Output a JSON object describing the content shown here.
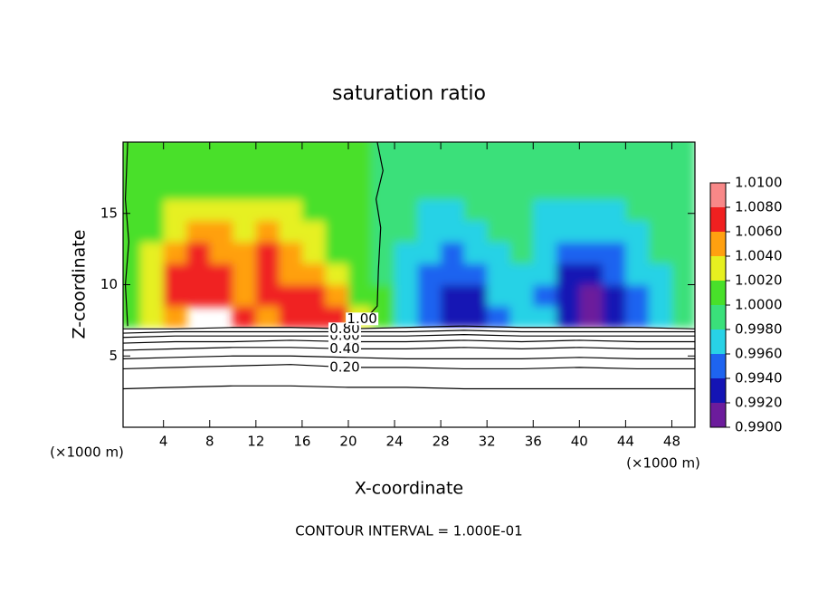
{
  "chart_data": {
    "type": "contour",
    "title": "saturation ratio",
    "x_label": "X-coordinate",
    "y_label": "Z-coordinate",
    "x_unit": "(×1000 m)",
    "y_unit": "(×1000 m)",
    "note": "CONTOUR INTERVAL = 1.000E-01",
    "xlim": [
      0.5,
      50
    ],
    "ylim": [
      0,
      20
    ],
    "xticks": [
      4,
      8,
      12,
      16,
      20,
      24,
      28,
      32,
      36,
      40,
      44,
      48
    ],
    "yticks": [
      5,
      10,
      15
    ],
    "colorbar": {
      "ticks": [
        {
          "value": 0.99,
          "label": "0.9900"
        },
        {
          "value": 0.992,
          "label": "0.9920"
        },
        {
          "value": 0.994,
          "label": "0.9940"
        },
        {
          "value": 0.996,
          "label": "0.9960"
        },
        {
          "value": 0.998,
          "label": "0.9980"
        },
        {
          "value": 1.0,
          "label": "1.0000"
        },
        {
          "value": 1.002,
          "label": "1.0020"
        },
        {
          "value": 1.004,
          "label": "1.0040"
        },
        {
          "value": 1.006,
          "label": "1.0060"
        },
        {
          "value": 1.008,
          "label": "1.0080"
        },
        {
          "value": 1.01,
          "label": "1.0100"
        }
      ],
      "colors": [
        "#6c1c9c",
        "#1414b4",
        "#1e64f0",
        "#28d2e6",
        "#3ae07a",
        "#48e02a",
        "#e6f020",
        "#ffa010",
        "#f02020",
        "#f88888"
      ]
    },
    "field": {
      "x": [
        1,
        3,
        5,
        7,
        9,
        11,
        13,
        15,
        17,
        19,
        21,
        23,
        25,
        27,
        29,
        31,
        33,
        35,
        37,
        39,
        41,
        43,
        45,
        47,
        49
      ],
      "z": [
        7.75,
        9.25,
        10.75,
        12.25,
        13.75,
        15.25,
        16.75,
        18.25,
        19.75
      ],
      "values": [
        [
          1.0,
          1.002,
          1.005,
          null,
          null,
          1.006,
          1.005,
          1.007,
          1.006,
          1.007,
          1.002,
          1.0,
          0.997,
          0.994,
          0.992,
          0.993,
          0.995,
          0.997,
          0.996,
          0.993,
          0.991,
          0.992,
          0.994,
          0.996,
          0.998
        ],
        [
          1.0,
          1.003,
          1.007,
          1.007,
          1.006,
          1.005,
          1.007,
          1.006,
          1.007,
          1.005,
          1.001,
          1.0,
          0.997,
          0.994,
          0.993,
          0.993,
          0.996,
          0.997,
          0.995,
          0.992,
          0.991,
          0.993,
          0.995,
          0.997,
          0.998
        ],
        [
          1.0,
          1.002,
          1.006,
          1.007,
          1.006,
          1.005,
          1.007,
          1.005,
          1.004,
          1.002,
          1.0,
          0.999,
          0.997,
          0.995,
          0.994,
          0.995,
          0.997,
          0.997,
          0.996,
          0.993,
          0.992,
          0.994,
          0.996,
          0.997,
          0.998
        ],
        [
          1.0,
          1.002,
          1.004,
          1.006,
          1.005,
          1.004,
          1.006,
          1.004,
          1.003,
          1.001,
          1.0,
          0.999,
          0.997,
          0.996,
          0.995,
          0.996,
          0.997,
          0.998,
          0.996,
          0.994,
          0.994,
          0.995,
          0.997,
          0.998,
          0.998
        ],
        [
          1.0,
          1.001,
          1.003,
          1.004,
          1.004,
          1.003,
          1.004,
          1.003,
          1.002,
          1.001,
          1.0,
          0.999,
          0.998,
          0.997,
          0.996,
          0.997,
          0.998,
          0.998,
          0.997,
          0.996,
          0.996,
          0.996,
          0.997,
          0.998,
          0.999
        ],
        [
          1.0,
          1.001,
          1.002,
          1.002,
          1.002,
          1.002,
          1.002,
          1.002,
          1.001,
          1.001,
          1.0,
          0.999,
          0.998,
          0.997,
          0.997,
          0.998,
          0.998,
          0.998,
          0.997,
          0.997,
          0.997,
          0.997,
          0.998,
          0.998,
          0.999
        ],
        [
          1.0,
          1.001,
          1.001,
          1.001,
          1.001,
          1.001,
          1.001,
          1.001,
          1.001,
          1.0,
          1.0,
          0.999,
          0.999,
          0.998,
          0.998,
          0.998,
          0.999,
          0.999,
          0.998,
          0.998,
          0.998,
          0.998,
          0.998,
          0.999,
          0.999
        ],
        [
          1.0,
          1.0,
          1.0,
          1.0,
          1.0,
          1.0,
          1.0,
          1.0,
          1.0,
          1.0,
          1.0,
          0.999,
          0.999,
          0.999,
          0.999,
          0.999,
          0.999,
          0.999,
          0.999,
          0.999,
          0.999,
          0.999,
          0.999,
          0.999,
          0.999
        ],
        [
          1.0,
          1.0,
          1.0,
          1.0,
          1.0,
          1.0,
          1.0,
          1.0,
          1.0,
          1.0,
          1.0,
          0.999,
          0.999,
          0.999,
          0.999,
          0.999,
          0.999,
          0.999,
          0.999,
          0.999,
          0.999,
          0.999,
          0.999,
          0.999,
          0.999
        ]
      ]
    },
    "contours": [
      {
        "x": [
          0.5,
          5,
          10,
          15,
          20,
          25,
          30,
          35,
          40,
          45,
          50
        ],
        "z": [
          2.7,
          2.8,
          2.9,
          2.9,
          2.8,
          2.8,
          2.7,
          2.7,
          2.7,
          2.7,
          2.7
        ]
      },
      {
        "label": "0.20",
        "x": [
          0.5,
          5,
          10,
          15,
          20,
          25,
          30,
          35,
          40,
          45,
          50
        ],
        "z": [
          4.1,
          4.2,
          4.3,
          4.4,
          4.2,
          4.2,
          4.1,
          4.1,
          4.2,
          4.1,
          4.1
        ]
      },
      {
        "x": [
          0.5,
          5,
          10,
          15,
          20,
          25,
          30,
          35,
          40,
          45,
          50
        ],
        "z": [
          4.8,
          4.9,
          5.0,
          5.0,
          4.9,
          4.8,
          4.8,
          4.8,
          4.9,
          4.8,
          4.8
        ]
      },
      {
        "label": "0.40",
        "x": [
          0.5,
          5,
          10,
          15,
          20,
          25,
          30,
          35,
          40,
          45,
          50
        ],
        "z": [
          5.4,
          5.5,
          5.6,
          5.6,
          5.5,
          5.5,
          5.6,
          5.5,
          5.6,
          5.5,
          5.5
        ]
      },
      {
        "x": [
          0.5,
          5,
          10,
          15,
          20,
          25,
          30,
          35,
          40,
          45,
          50
        ],
        "z": [
          5.9,
          6.0,
          6.0,
          6.1,
          6.0,
          6.0,
          6.1,
          6.0,
          6.1,
          6.0,
          6.0
        ]
      },
      {
        "label": "0.60",
        "x": [
          0.5,
          5,
          10,
          15,
          20,
          25,
          30,
          35,
          40,
          45,
          50
        ],
        "z": [
          6.3,
          6.4,
          6.4,
          6.4,
          6.4,
          6.4,
          6.5,
          6.4,
          6.4,
          6.4,
          6.4
        ]
      },
      {
        "x": [
          0.5,
          5,
          10,
          15,
          20,
          25,
          30,
          35,
          40,
          45,
          50
        ],
        "z": [
          6.6,
          6.7,
          6.7,
          6.7,
          6.7,
          6.7,
          6.8,
          6.7,
          6.7,
          6.7,
          6.7
        ]
      },
      {
        "label": "0.80",
        "x": [
          0.5,
          5,
          10,
          15,
          20,
          25,
          30,
          35,
          40,
          45,
          50
        ],
        "z": [
          6.9,
          6.9,
          7.0,
          7.0,
          6.9,
          7.0,
          7.1,
          7.0,
          7.0,
          7.0,
          6.9
        ]
      },
      {
        "label": "1.00",
        "x": [
          20.5,
          21.5,
          22.5,
          22.6,
          22.8,
          22.4,
          23.0,
          22.5
        ],
        "z": [
          7.1,
          7.6,
          8.5,
          11,
          14,
          16,
          18,
          20
        ]
      },
      {
        "x": [
          0.9,
          0.7,
          1.0,
          0.7,
          0.9
        ],
        "z": [
          7.1,
          10,
          13,
          16,
          20
        ]
      }
    ]
  }
}
